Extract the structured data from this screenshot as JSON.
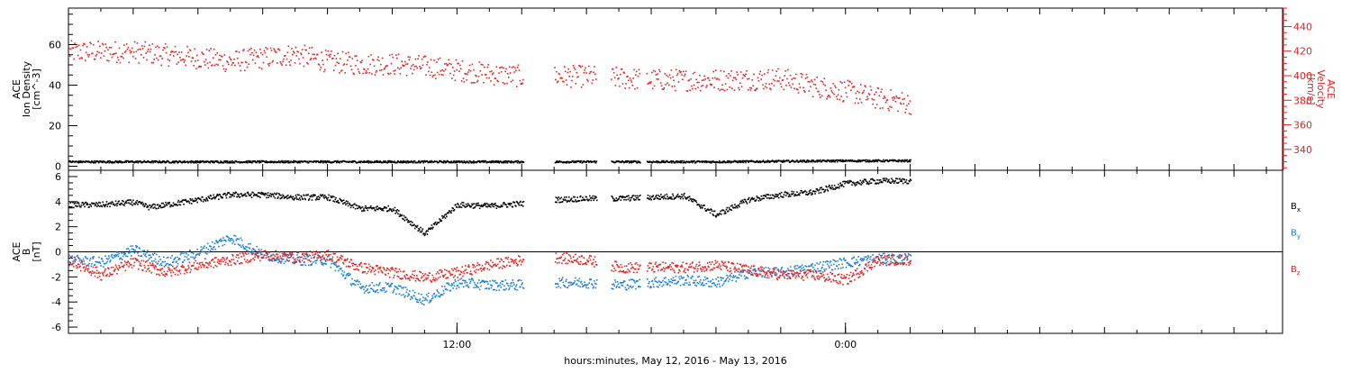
{
  "caption": "hours:minutes, May 12, 2016 - May 13, 2016",
  "colors": {
    "axis": "#000000",
    "red": "#e82020",
    "blue": "#1a7fd6",
    "black": "#000000"
  },
  "chart_data": [
    {
      "type": "scatter",
      "panel": "top",
      "ylabel": [
        "ACE",
        "Ion Density",
        "[cm^-3]"
      ],
      "ylabel_right": [
        "ACE",
        "Velocity",
        "[km/s]"
      ],
      "ylim": [
        -2,
        78
      ],
      "ylim_right": [
        323,
        455
      ],
      "yticks": [
        0,
        20,
        40,
        60
      ],
      "yticks_right": [
        340,
        360,
        380,
        400,
        420,
        440
      ],
      "xlim_hours": [
        0,
        37.5
      ],
      "xticks": [
        {
          "x": 12,
          "label": "12:00"
        },
        {
          "x": 24,
          "label": "0:00"
        }
      ],
      "data_gaps_hours": [
        [
          14.05,
          15.0
        ],
        [
          16.3,
          16.75
        ],
        [
          17.65,
          17.85
        ]
      ],
      "data_end_hours": 26.05,
      "series": [
        {
          "color": "red",
          "axis": "right",
          "x": [
            0,
            2,
            4,
            5,
            6,
            7,
            8,
            9,
            10,
            11,
            12,
            13,
            14,
            15,
            16,
            18,
            20,
            22,
            23,
            24,
            25,
            26
          ],
          "y": [
            420,
            420,
            415,
            412,
            415,
            418,
            412,
            410,
            410,
            408,
            405,
            402,
            400,
            400,
            400,
            397,
            397,
            398,
            392,
            388,
            382,
            378
          ]
        },
        {
          "color": "black",
          "axis": "left",
          "x": [
            0,
            4,
            8,
            12,
            16,
            20,
            24,
            26
          ],
          "y": [
            2.5,
            2.5,
            2.5,
            2.5,
            2.5,
            2.5,
            3.0,
            3.0
          ]
        }
      ]
    },
    {
      "type": "scatter",
      "panel": "bottom",
      "ylabel": [
        "ACE",
        "B",
        "[nT]"
      ],
      "ylim": [
        -6.5,
        6.5
      ],
      "yticks": [
        -6,
        -4,
        -2,
        0,
        2,
        4,
        6
      ],
      "xlim_hours": [
        0,
        37.5
      ],
      "zero_line": 0,
      "series": [
        {
          "name": "Bx",
          "color": "black",
          "x": [
            0,
            1,
            2,
            2.5,
            3,
            4,
            5,
            6,
            7,
            8,
            9,
            10,
            11,
            12,
            13,
            14,
            15,
            16,
            17,
            18,
            19,
            20,
            21,
            22,
            23,
            24,
            25,
            26
          ],
          "y": [
            3.8,
            3.8,
            4.0,
            3.6,
            3.8,
            4.2,
            4.6,
            4.6,
            4.4,
            4.4,
            3.5,
            3.5,
            1.5,
            3.8,
            3.7,
            3.9,
            4.2,
            4.3,
            4.3,
            4.4,
            4.5,
            3.0,
            4.2,
            4.6,
            4.8,
            5.5,
            5.7,
            5.7
          ]
        },
        {
          "name": "By",
          "color": "blue",
          "x": [
            0,
            1,
            2,
            3,
            4,
            5,
            6,
            7,
            8,
            9,
            10,
            11,
            12,
            13,
            14,
            15,
            16,
            17,
            18,
            19,
            20,
            21,
            22,
            23,
            24,
            25,
            26
          ],
          "y": [
            -0.6,
            -0.8,
            0.2,
            -0.8,
            0.0,
            1.2,
            -0.2,
            -0.6,
            -0.6,
            -2.8,
            -2.8,
            -3.8,
            -2.4,
            -2.6,
            -2.6,
            -2.4,
            -2.4,
            -2.6,
            -2.4,
            -2.2,
            -2.4,
            -1.6,
            -1.6,
            -1.2,
            -0.8,
            -0.5,
            -0.5
          ]
        },
        {
          "name": "Bz",
          "color": "red",
          "x": [
            0,
            1,
            2,
            3,
            4,
            5,
            6,
            7,
            8,
            9,
            10,
            11,
            12,
            13,
            14,
            15,
            16,
            17,
            18,
            19,
            20,
            21,
            22,
            23,
            24,
            25,
            26
          ],
          "y": [
            -0.6,
            -1.8,
            -0.8,
            -1.6,
            -1.0,
            -0.6,
            -0.2,
            -0.4,
            -0.2,
            -1.2,
            -1.6,
            -2.0,
            -1.6,
            -1.0,
            -0.6,
            -0.4,
            -0.6,
            -1.2,
            -1.2,
            -1.2,
            -1.0,
            -1.4,
            -1.8,
            -1.8,
            -2.2,
            -0.6,
            -0.6
          ]
        }
      ],
      "legend": [
        {
          "key": "Bx",
          "main": "B",
          "sub": "x",
          "color": "black"
        },
        {
          "key": "By",
          "main": "B",
          "sub": "y",
          "color": "blue"
        },
        {
          "key": "Bz",
          "main": "B",
          "sub": "z",
          "color": "red"
        }
      ]
    }
  ]
}
